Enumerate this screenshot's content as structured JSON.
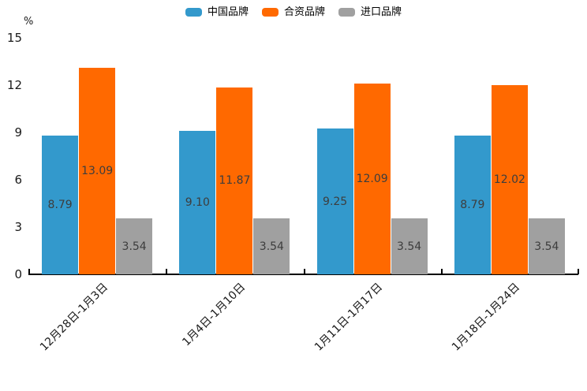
{
  "chart_data": {
    "type": "bar",
    "title": "",
    "unit_label": "%",
    "xlabel": "",
    "ylabel": "%",
    "categories": [
      "12月28日-1月3日",
      "1月4日-1月10日",
      "1月11日-1月17日",
      "1月18日-1月24日"
    ],
    "series": [
      {
        "name": "中国品牌",
        "color": "#3399cc",
        "values": [
          8.79,
          9.1,
          9.25,
          8.79
        ]
      },
      {
        "name": "合资品牌",
        "color": "#ff6900",
        "values": [
          13.09,
          11.87,
          12.09,
          12.02
        ]
      },
      {
        "name": "进口品牌",
        "color": "#a0a0a0",
        "values": [
          3.54,
          3.54,
          3.54,
          3.54
        ]
      }
    ],
    "ylim": [
      0,
      15
    ],
    "yticks": [
      0,
      3,
      6,
      9,
      12,
      15
    ],
    "grid": false,
    "legend_position": "top",
    "x_tick_rotation_deg": 45,
    "bar_value_labels": true,
    "value_label_decimals": 2,
    "colors": {
      "axis": "#000000",
      "tick_text": "#1a1a1a",
      "bar_label_text": "#3d3d3d",
      "background": "#ffffff"
    }
  }
}
